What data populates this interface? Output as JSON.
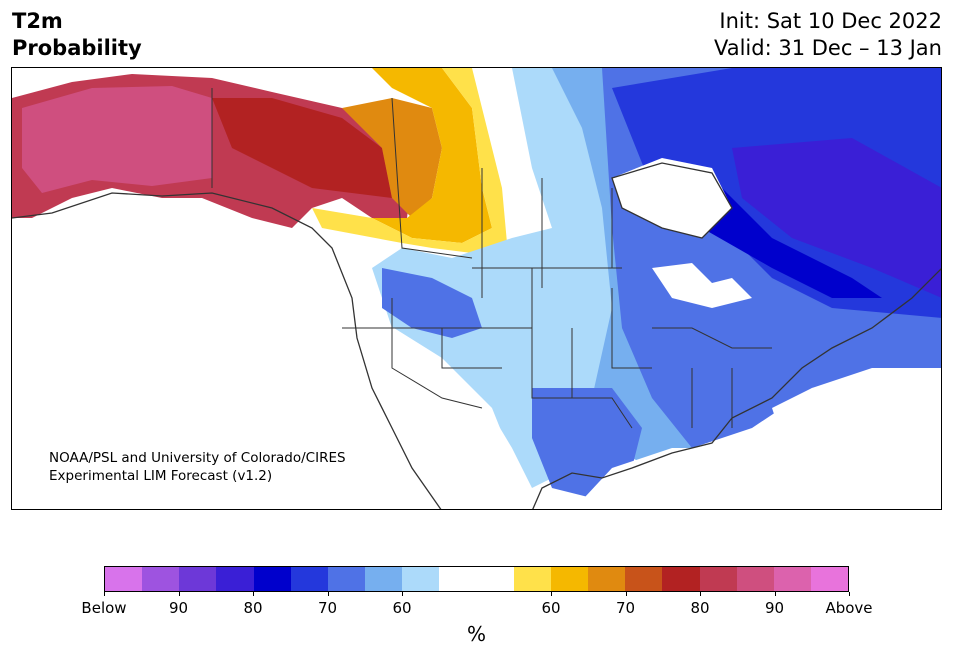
{
  "title": {
    "left_line1": "T2m",
    "left_line2": "Probability",
    "right_line1": "Init: Sat 10 Dec 2022",
    "right_line2": "Valid: 31 Dec – 13 Jan"
  },
  "credit": {
    "line1": "NOAA/PSL and University of Colorado/CIRES",
    "line2": "Experimental LIM Forecast (v1.2)"
  },
  "colorbar": {
    "label": "%",
    "below_colors": [
      "#d873eb",
      "#9e53e0",
      "#6d38d8",
      "#3a1fd6",
      "#0000cc",
      "#2438dc",
      "#4f72e6",
      "#76afef",
      "#acdafa"
    ],
    "neutral_color": "#ffffff",
    "above_colors": [
      "#ffe14a",
      "#f5b800",
      "#e08a10",
      "#c8531a",
      "#b22222",
      "#c03a52",
      "#cf4f7f",
      "#dc62ad",
      "#e873dc"
    ],
    "ticks": [
      {
        "label": "Below",
        "value": "Below"
      },
      {
        "label": "90",
        "value": 90
      },
      {
        "label": "80",
        "value": 80
      },
      {
        "label": "70",
        "value": 70
      },
      {
        "label": "60",
        "value": 60
      },
      {
        "label": "60",
        "value": 60
      },
      {
        "label": "70",
        "value": 70
      },
      {
        "label": "80",
        "value": 80
      },
      {
        "label": "90",
        "value": 90
      },
      {
        "label": "Above",
        "value": "Above"
      }
    ]
  },
  "map": {
    "region": "North America",
    "colors": {
      "coastline": "#333333",
      "border": "#333333"
    }
  }
}
